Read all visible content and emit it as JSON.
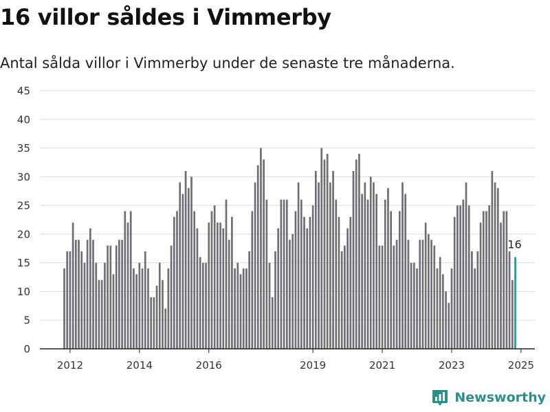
{
  "title": "16 villor såldes i Vimmerby",
  "subtitle": "Antal sålda villor i Vimmerby under de senaste tre månaderna.",
  "brand": {
    "name": "Newsworthy",
    "icon": "newsworthy-logo-icon",
    "color": "#2e8f8a"
  },
  "chart_data": {
    "type": "bar",
    "title": "",
    "xlabel": "",
    "ylabel": "",
    "ylim": [
      0,
      45
    ],
    "yticks": [
      0,
      5,
      10,
      15,
      20,
      25,
      30,
      35,
      40,
      45
    ],
    "xticks": [
      {
        "label": "2012",
        "year": 2012
      },
      {
        "label": "2014",
        "year": 2014
      },
      {
        "label": "2016",
        "year": 2016
      },
      {
        "label": "2019",
        "year": 2019
      },
      {
        "label": "2021",
        "year": 2021
      },
      {
        "label": "2023",
        "year": 2023
      },
      {
        "label": "2025",
        "year": 2025
      }
    ],
    "grid": true,
    "legend": "none",
    "first_period": "2011-11",
    "period_step": "month",
    "bar_color": "#6f6e73",
    "highlight_color": "#1e9a92",
    "series": [
      {
        "values": [
          14,
          17,
          17,
          22,
          19,
          19,
          17,
          15,
          19,
          21,
          19,
          15,
          12,
          12,
          15,
          18,
          18,
          13,
          18,
          19,
          19,
          24,
          22,
          24,
          14,
          13,
          15,
          14,
          17,
          14,
          9,
          9,
          11,
          15,
          12,
          7,
          14,
          18,
          23,
          24,
          29,
          27,
          31,
          28,
          30,
          24,
          21,
          16,
          15,
          15,
          22,
          24,
          25,
          22,
          22,
          21,
          26,
          19,
          23,
          14,
          15,
          13,
          14,
          14,
          17,
          24,
          29,
          32,
          35,
          33,
          26,
          15,
          9,
          17,
          21,
          26,
          26,
          26,
          19,
          20,
          24,
          29,
          26,
          23,
          21,
          23,
          25,
          31,
          29,
          35,
          33,
          34,
          29,
          31,
          26,
          23,
          17,
          18,
          21,
          23,
          31,
          33,
          34,
          27,
          29,
          26,
          30,
          29,
          27,
          18,
          18,
          26,
          28,
          24,
          18,
          19,
          24,
          29,
          27,
          19,
          15,
          15,
          14,
          19,
          19,
          22,
          20,
          19,
          18,
          14,
          16,
          13,
          10,
          8,
          14,
          23,
          25,
          25,
          26,
          29,
          25,
          17,
          14,
          17,
          22,
          24,
          24,
          25,
          31,
          29,
          28,
          22,
          24,
          24,
          17,
          12,
          16
        ]
      }
    ],
    "highlight": {
      "label": "16",
      "value": 16,
      "index": 156
    }
  }
}
